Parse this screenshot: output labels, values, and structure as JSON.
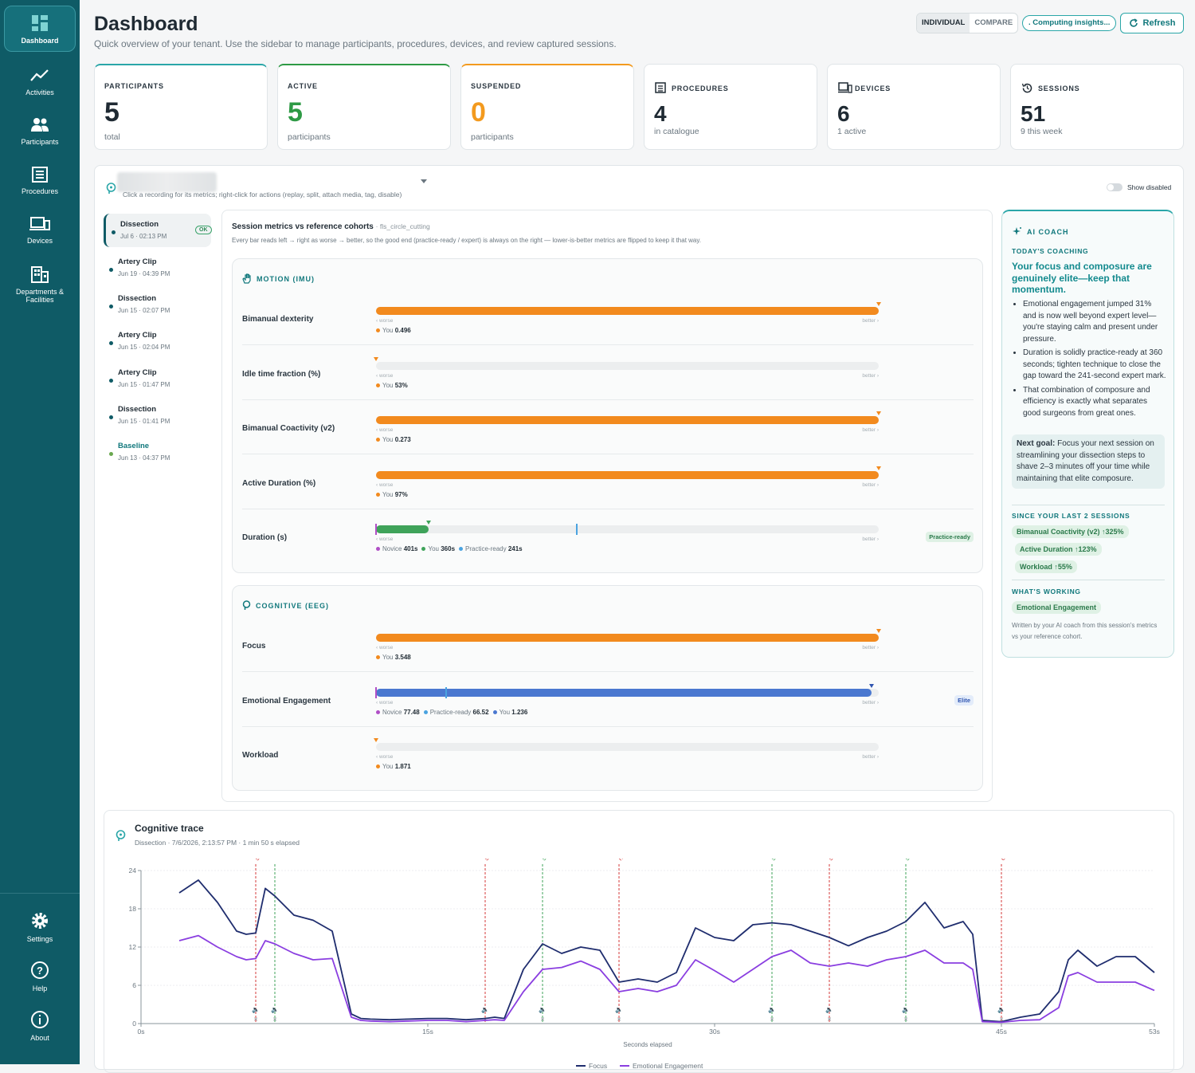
{
  "nav": {
    "items": [
      "Dashboard",
      "Activities",
      "Participants",
      "Procedures",
      "Devices",
      "Departments &",
      "Facilities"
    ],
    "settings": "Settings",
    "help": "Help",
    "about": "About"
  },
  "header": {
    "title": "Dashboard",
    "subtitle": "Quick overview of your tenant. Use the sidebar to manage participants, procedures, devices, and review captured sessions.",
    "mode_individual": "INDIVIDUAL",
    "mode_compare": "COMPARE",
    "insights": ". Computing insights...",
    "refresh": "Refresh"
  },
  "cards": [
    {
      "label": "PARTICIPANTS",
      "value": "5",
      "sub": "total",
      "color": "#1f2a33",
      "accent": "#2aa6a8"
    },
    {
      "label": "ACTIVE",
      "value": "5",
      "sub": "participants",
      "color": "#2e9a45",
      "accent": "#2e9a45"
    },
    {
      "label": "SUSPENDED",
      "value": "0",
      "sub": "participants",
      "color": "#f39a1e",
      "accent": "#f39a1e"
    },
    {
      "label": "PROCEDURES",
      "value": "4",
      "sub": "in catalogue",
      "icon": "list-icon"
    },
    {
      "label": "DEVICES",
      "value": "6",
      "sub": "1 active",
      "icon": "devices-icon"
    },
    {
      "label": "SESSIONS",
      "value": "51",
      "sub": "9 this week",
      "icon": "history-icon"
    }
  ],
  "panel": {
    "hint": "Click a recording for its metrics; right-click for actions (replay, split, attach media, tag, disable)",
    "show_disabled": "Show disabled"
  },
  "sessions": [
    {
      "title": "Dissection",
      "date": "Jul 6 · 02:13 PM",
      "status": "OK"
    },
    {
      "title": "Artery Clip",
      "date": "Jun 19 · 04:39 PM"
    },
    {
      "title": "Dissection",
      "date": "Jun 15 · 02:07 PM"
    },
    {
      "title": "Artery Clip",
      "date": "Jun 15 · 02:04 PM"
    },
    {
      "title": "Artery Clip",
      "date": "Jun 15 · 01:47 PM"
    },
    {
      "title": "Dissection",
      "date": "Jun 15 · 01:41 PM"
    },
    {
      "title": "Baseline",
      "date": "Jun 13 · 04:37 PM"
    }
  ],
  "metrics": {
    "title": "Session metrics vs reference cohorts",
    "procedure": "· fls_circle_cutting",
    "desc": "Every bar reads left → right as worse → better, so the good end (practice-ready / expert) is always on the right — lower-is-better metrics are flipped to keep it that way.",
    "worse": "‹ worse",
    "better": "better ›",
    "motion": {
      "heading": "MOTION (IMU)",
      "rows": [
        {
          "name": "Bimanual dexterity",
          "fill": 1.0,
          "color": "#f28a1e",
          "legend": [
            [
              "You",
              "0.496",
              "#f28a1e"
            ]
          ]
        },
        {
          "name": "Idle time fraction (%)",
          "fill": 0.0,
          "color": "#f28a1e",
          "legend": [
            [
              "You",
              "53%",
              "#f28a1e"
            ]
          ]
        },
        {
          "name": "Bimanual Coactivity (v2)",
          "fill": 1.0,
          "color": "#f28a1e",
          "legend": [
            [
              "You",
              "0.273",
              "#f28a1e"
            ]
          ]
        },
        {
          "name": "Active Duration (%)",
          "fill": 1.0,
          "color": "#f28a1e",
          "legend": [
            [
              "You",
              "97%",
              "#f28a1e"
            ]
          ]
        },
        {
          "name": "Duration (s)",
          "fill": 0.105,
          "color": "#3fa35a",
          "badge": "Practice-ready",
          "legend": [
            [
              "Novice",
              "401s",
              "#b04fc6"
            ],
            [
              "You",
              "360s",
              "#3fa35a"
            ],
            [
              "Practice-ready",
              "241s",
              "#4aa3e0"
            ]
          ]
        }
      ]
    },
    "cognitive": {
      "heading": "COGNITIVE (EEG)",
      "rows": [
        {
          "name": "Focus",
          "fill": 1.0,
          "color": "#f28a1e",
          "legend": [
            [
              "You",
              "3.548",
              "#f28a1e"
            ]
          ]
        },
        {
          "name": "Emotional Engagement",
          "fill": 0.985,
          "color": "#4a78d0",
          "badge": "Elite",
          "legend": [
            [
              "Novice",
              "77.48",
              "#b04fc6"
            ],
            [
              "Practice-ready",
              "66.52",
              "#4aa3e0"
            ],
            [
              "You",
              "1.236",
              "#4a78d0"
            ]
          ]
        },
        {
          "name": "Workload",
          "fill": 0.0,
          "color": "#f28a1e",
          "legend": [
            [
              "You",
              "1.871",
              "#f28a1e"
            ]
          ]
        }
      ]
    }
  },
  "coach": {
    "title": "AI COACH",
    "today": "TODAY'S COACHING",
    "headline": "Your focus and composure are genuinely elite—keep that momentum.",
    "bullets": [
      "Emotional engagement jumped 31% and is now well beyond expert level—you're staying calm and present under pressure.",
      "Duration is solidly practice-ready at 360 seconds; tighten technique to close the gap toward the 241-second expert mark.",
      "That combination of composure and efficiency is exactly what separates good surgeons from great ones."
    ],
    "goal_label": "Next goal:",
    "goal": "Focus your next session on streamlining your dissection steps to shave 2–3 minutes off your time while maintaining that elite composure.",
    "since": "SINCE YOUR LAST 2 SESSIONS",
    "chips": [
      "Bimanual Coactivity (v2) ↑325%",
      "Active Duration ↑123%",
      "Workload ↑55%"
    ],
    "working": "WHAT'S WORKING",
    "working_chip": "Emotional Engagement",
    "foot": "Written by your AI coach from this session's metrics vs your reference cohort."
  },
  "trace": {
    "title": "Cognitive trace",
    "subtitle": "Dissection · 7/6/2026, 2:13:57 PM · 1 min 50 s elapsed"
  },
  "chart_data": {
    "type": "line",
    "title": "Cognitive trace",
    "xlabel": "Seconds elapsed",
    "ylabel": "",
    "xlim": [
      0,
      53
    ],
    "ylim": [
      0,
      24
    ],
    "yticks": [
      0,
      6,
      12,
      18,
      24
    ],
    "xticks": [
      "0s",
      "15s",
      "30s",
      "45s",
      "53s"
    ],
    "xtick_values": [
      0,
      15,
      30,
      45,
      53
    ],
    "x": [
      2,
      3,
      4,
      5,
      5.5,
      6,
      6.5,
      7,
      8,
      9,
      10,
      11,
      11.5,
      12,
      13,
      14,
      15,
      16,
      17,
      18,
      18.5,
      19,
      20,
      21,
      22,
      23,
      24,
      25,
      26,
      27,
      28,
      29,
      30,
      31,
      32,
      33,
      34,
      35,
      36,
      37,
      38,
      39,
      40,
      41,
      42,
      43,
      43.5,
      44,
      45,
      46,
      47,
      48,
      48.5,
      49,
      50,
      51,
      52,
      53
    ],
    "series": [
      {
        "name": "Focus",
        "color": "#1f2d6e",
        "values": [
          20.5,
          22.5,
          19,
          14.5,
          14,
          14.2,
          21.2,
          20,
          17,
          16.2,
          14.5,
          1.5,
          0.8,
          0.7,
          0.6,
          0.7,
          0.8,
          0.8,
          0.6,
          0.8,
          1,
          0.8,
          8.5,
          12.5,
          11,
          12,
          11.5,
          6.5,
          7,
          6.5,
          8,
          15,
          13.5,
          13,
          15.5,
          15.8,
          15.5,
          14.5,
          13.5,
          12.2,
          13.5,
          14.5,
          16,
          19,
          15,
          16,
          14,
          0.5,
          0.3,
          1,
          1.5,
          5,
          10,
          11.5,
          9,
          10.5,
          10.5,
          8
        ]
      },
      {
        "name": "Emotional Engagement",
        "color": "#8a3ee0",
        "values": [
          13,
          13.8,
          12,
          10.5,
          10,
          10.2,
          13,
          12.5,
          11,
          10,
          10.2,
          1,
          0.5,
          0.4,
          0.3,
          0.4,
          0.5,
          0.5,
          0.3,
          0.5,
          0.6,
          0.5,
          5,
          8.5,
          8.8,
          9.8,
          8.5,
          5,
          5.5,
          5,
          6,
          10,
          8.3,
          6.5,
          8.5,
          10.5,
          11.5,
          9.5,
          9,
          9.5,
          9,
          10,
          10.5,
          11.5,
          9.5,
          9.5,
          8.5,
          0.3,
          0.2,
          0.5,
          0.6,
          2.5,
          7.5,
          8,
          6.5,
          6.5,
          6.5,
          5.2
        ]
      }
    ],
    "annotations": [
      {
        "x": 6,
        "label": "silence",
        "color": "#d43b3b"
      },
      {
        "x": 7,
        "label": "",
        "color": "#3fa35a"
      },
      {
        "x": 18,
        "label": "silence",
        "color": "#d43b3b"
      },
      {
        "x": 21,
        "label": "silence",
        "color": "#3fa35a"
      },
      {
        "x": 25,
        "label": "music playing",
        "color": "#d43b3b"
      },
      {
        "x": 33,
        "label": "silence",
        "color": "#3fa35a"
      },
      {
        "x": 36,
        "label": "silence",
        "color": "#d43b3b"
      },
      {
        "x": 40,
        "label": "silence",
        "color": "#3fa35a"
      },
      {
        "x": 45,
        "label": "uncertainty",
        "color": "#d43b3b"
      }
    ],
    "legend": "bottom-center",
    "grid": true
  }
}
